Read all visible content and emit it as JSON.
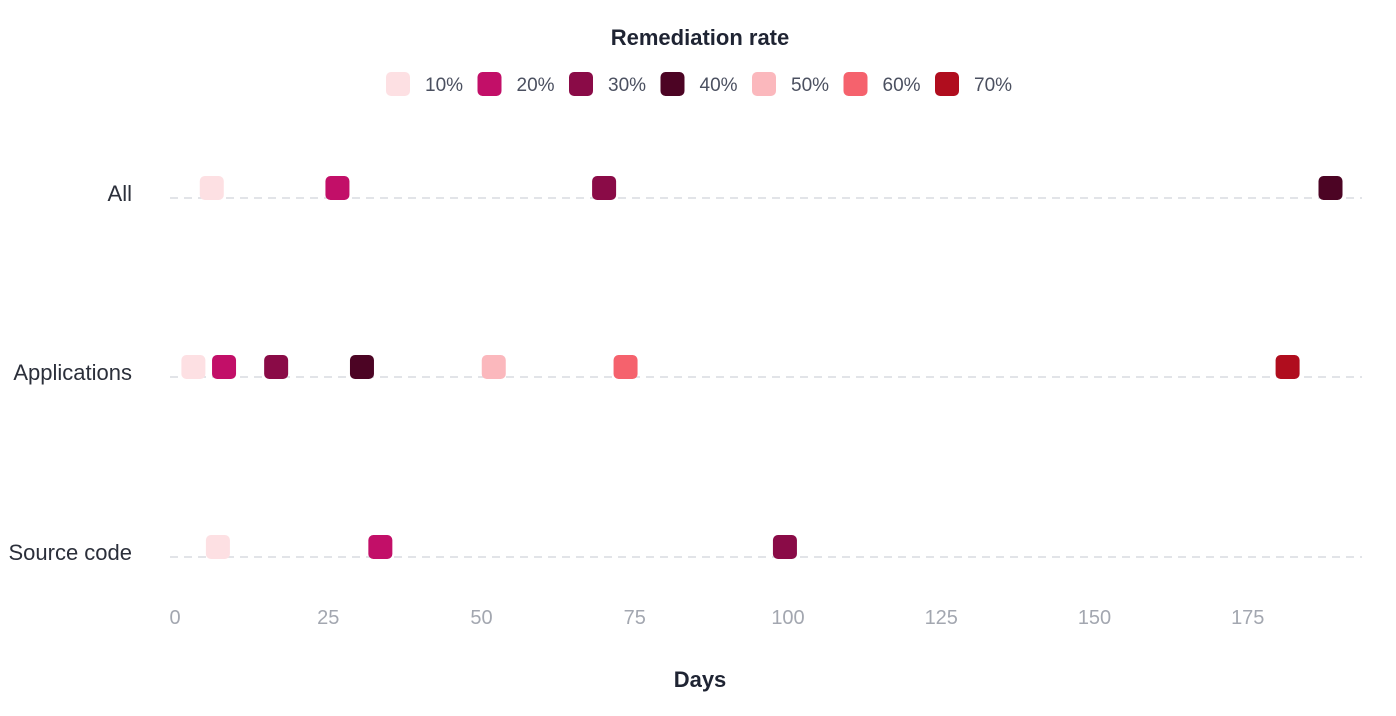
{
  "chart_data": {
    "type": "scatter",
    "legend_title": "Remediation rate",
    "legend_placement": "top-center",
    "xlabel": "Days",
    "ylabel": "",
    "xlim": [
      0,
      192
    ],
    "xticks": [
      0,
      25,
      50,
      75,
      100,
      125,
      150,
      175
    ],
    "categories": [
      "All",
      "Applications",
      "Source code"
    ],
    "grid": "dashed horizontal row lines",
    "series": [
      {
        "name": "10%",
        "color": "#fde0e3",
        "values": [
          6,
          3,
          7
        ]
      },
      {
        "name": "20%",
        "color": "#c20f68",
        "values": [
          26.5,
          8,
          33.5
        ]
      },
      {
        "name": "30%",
        "color": "#8a0b47",
        "values": [
          70,
          16.5,
          99.5
        ]
      },
      {
        "name": "40%",
        "color": "#4c0424",
        "values": [
          188.5,
          30.5,
          null
        ]
      },
      {
        "name": "50%",
        "color": "#fbb8bd",
        "values": [
          null,
          52,
          null
        ]
      },
      {
        "name": "60%",
        "color": "#f5626d",
        "values": [
          null,
          73.5,
          null
        ]
      },
      {
        "name": "70%",
        "color": "#b00d1e",
        "values": [
          null,
          181.5,
          null
        ]
      }
    ]
  }
}
